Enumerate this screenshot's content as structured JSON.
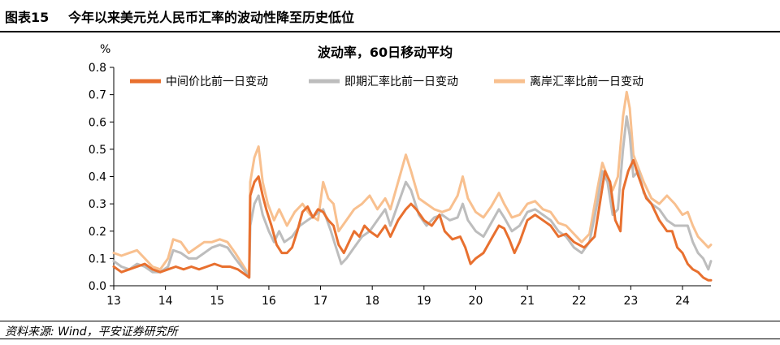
{
  "header": {
    "figure_no": "图表15",
    "title": "今年以来美元兑人民币汇率的波动性降至历史低位"
  },
  "source": "资料来源: Wind，平安证券研究所",
  "chart_data": {
    "type": "line",
    "title": "波动率，60日移动平均",
    "ylabel": "%",
    "ylim": [
      0,
      0.8
    ],
    "yticks": [
      "0.0",
      "0.1",
      "0.2",
      "0.3",
      "0.4",
      "0.5",
      "0.6",
      "0.7",
      "0.8"
    ],
    "xlim": [
      2013,
      2024.55
    ],
    "xticks": [
      "13",
      "14",
      "15",
      "16",
      "17",
      "18",
      "19",
      "20",
      "21",
      "22",
      "23",
      "24"
    ],
    "legend_position": "top-center",
    "series": [
      {
        "name": "中间价比前一日变动",
        "color": "#E8702F",
        "points": [
          [
            2013.0,
            0.07
          ],
          [
            2013.15,
            0.05
          ],
          [
            2013.3,
            0.06
          ],
          [
            2013.45,
            0.07
          ],
          [
            2013.6,
            0.08
          ],
          [
            2013.75,
            0.06
          ],
          [
            2013.9,
            0.05
          ],
          [
            2014.05,
            0.06
          ],
          [
            2014.2,
            0.07
          ],
          [
            2014.35,
            0.06
          ],
          [
            2014.5,
            0.07
          ],
          [
            2014.65,
            0.06
          ],
          [
            2014.8,
            0.07
          ],
          [
            2014.95,
            0.08
          ],
          [
            2015.1,
            0.07
          ],
          [
            2015.25,
            0.07
          ],
          [
            2015.4,
            0.06
          ],
          [
            2015.55,
            0.04
          ],
          [
            2015.62,
            0.03
          ],
          [
            2015.64,
            0.33
          ],
          [
            2015.72,
            0.38
          ],
          [
            2015.8,
            0.4
          ],
          [
            2015.88,
            0.33
          ],
          [
            2015.95,
            0.28
          ],
          [
            2016.05,
            0.22
          ],
          [
            2016.15,
            0.15
          ],
          [
            2016.25,
            0.12
          ],
          [
            2016.35,
            0.12
          ],
          [
            2016.45,
            0.14
          ],
          [
            2016.55,
            0.2
          ],
          [
            2016.65,
            0.27
          ],
          [
            2016.75,
            0.29
          ],
          [
            2016.85,
            0.25
          ],
          [
            2016.95,
            0.28
          ],
          [
            2017.05,
            0.27
          ],
          [
            2017.15,
            0.24
          ],
          [
            2017.25,
            0.22
          ],
          [
            2017.35,
            0.15
          ],
          [
            2017.45,
            0.12
          ],
          [
            2017.55,
            0.16
          ],
          [
            2017.65,
            0.2
          ],
          [
            2017.75,
            0.18
          ],
          [
            2017.85,
            0.22
          ],
          [
            2017.95,
            0.2
          ],
          [
            2018.1,
            0.18
          ],
          [
            2018.25,
            0.22
          ],
          [
            2018.35,
            0.18
          ],
          [
            2018.5,
            0.24
          ],
          [
            2018.65,
            0.28
          ],
          [
            2018.75,
            0.3
          ],
          [
            2018.85,
            0.28
          ],
          [
            2019.0,
            0.24
          ],
          [
            2019.15,
            0.22
          ],
          [
            2019.3,
            0.26
          ],
          [
            2019.4,
            0.2
          ],
          [
            2019.55,
            0.17
          ],
          [
            2019.7,
            0.18
          ],
          [
            2019.8,
            0.14
          ],
          [
            2019.9,
            0.08
          ],
          [
            2020.0,
            0.1
          ],
          [
            2020.15,
            0.12
          ],
          [
            2020.3,
            0.17
          ],
          [
            2020.45,
            0.22
          ],
          [
            2020.55,
            0.21
          ],
          [
            2020.65,
            0.17
          ],
          [
            2020.75,
            0.12
          ],
          [
            2020.85,
            0.16
          ],
          [
            2021.0,
            0.24
          ],
          [
            2021.15,
            0.26
          ],
          [
            2021.3,
            0.24
          ],
          [
            2021.45,
            0.22
          ],
          [
            2021.6,
            0.18
          ],
          [
            2021.75,
            0.19
          ],
          [
            2021.9,
            0.16
          ],
          [
            2022.1,
            0.14
          ],
          [
            2022.3,
            0.18
          ],
          [
            2022.4,
            0.3
          ],
          [
            2022.5,
            0.42
          ],
          [
            2022.6,
            0.38
          ],
          [
            2022.7,
            0.24
          ],
          [
            2022.8,
            0.2
          ],
          [
            2022.85,
            0.35
          ],
          [
            2022.95,
            0.42
          ],
          [
            2023.05,
            0.46
          ],
          [
            2023.15,
            0.4
          ],
          [
            2023.3,
            0.32
          ],
          [
            2023.4,
            0.3
          ],
          [
            2023.55,
            0.24
          ],
          [
            2023.7,
            0.2
          ],
          [
            2023.8,
            0.2
          ],
          [
            2023.9,
            0.14
          ],
          [
            2024.0,
            0.12
          ],
          [
            2024.1,
            0.08
          ],
          [
            2024.2,
            0.06
          ],
          [
            2024.3,
            0.05
          ],
          [
            2024.4,
            0.03
          ],
          [
            2024.5,
            0.02
          ],
          [
            2024.55,
            0.02
          ]
        ]
      },
      {
        "name": "即期汇率比前一日变动",
        "color": "#BDBDBD",
        "points": [
          [
            2013.0,
            0.09
          ],
          [
            2013.15,
            0.07
          ],
          [
            2013.3,
            0.06
          ],
          [
            2013.45,
            0.08
          ],
          [
            2013.6,
            0.07
          ],
          [
            2013.75,
            0.05
          ],
          [
            2013.9,
            0.05
          ],
          [
            2014.05,
            0.07
          ],
          [
            2014.15,
            0.13
          ],
          [
            2014.3,
            0.12
          ],
          [
            2014.45,
            0.1
          ],
          [
            2014.6,
            0.1
          ],
          [
            2014.75,
            0.12
          ],
          [
            2014.9,
            0.14
          ],
          [
            2015.05,
            0.15
          ],
          [
            2015.2,
            0.14
          ],
          [
            2015.35,
            0.1
          ],
          [
            2015.55,
            0.05
          ],
          [
            2015.62,
            0.03
          ],
          [
            2015.64,
            0.22
          ],
          [
            2015.72,
            0.3
          ],
          [
            2015.8,
            0.33
          ],
          [
            2015.88,
            0.26
          ],
          [
            2016.0,
            0.2
          ],
          [
            2016.1,
            0.16
          ],
          [
            2016.2,
            0.2
          ],
          [
            2016.3,
            0.16
          ],
          [
            2016.45,
            0.18
          ],
          [
            2016.6,
            0.22
          ],
          [
            2016.75,
            0.24
          ],
          [
            2016.9,
            0.26
          ],
          [
            2017.05,
            0.28
          ],
          [
            2017.2,
            0.2
          ],
          [
            2017.3,
            0.14
          ],
          [
            2017.4,
            0.08
          ],
          [
            2017.5,
            0.1
          ],
          [
            2017.65,
            0.14
          ],
          [
            2017.8,
            0.18
          ],
          [
            2017.95,
            0.2
          ],
          [
            2018.1,
            0.24
          ],
          [
            2018.25,
            0.28
          ],
          [
            2018.35,
            0.22
          ],
          [
            2018.5,
            0.3
          ],
          [
            2018.65,
            0.38
          ],
          [
            2018.75,
            0.35
          ],
          [
            2018.9,
            0.26
          ],
          [
            2019.05,
            0.22
          ],
          [
            2019.2,
            0.25
          ],
          [
            2019.35,
            0.26
          ],
          [
            2019.5,
            0.24
          ],
          [
            2019.65,
            0.25
          ],
          [
            2019.75,
            0.3
          ],
          [
            2019.85,
            0.24
          ],
          [
            2020.0,
            0.2
          ],
          [
            2020.15,
            0.18
          ],
          [
            2020.3,
            0.23
          ],
          [
            2020.45,
            0.28
          ],
          [
            2020.55,
            0.25
          ],
          [
            2020.7,
            0.2
          ],
          [
            2020.85,
            0.22
          ],
          [
            2021.0,
            0.27
          ],
          [
            2021.15,
            0.28
          ],
          [
            2021.3,
            0.26
          ],
          [
            2021.45,
            0.24
          ],
          [
            2021.6,
            0.2
          ],
          [
            2021.75,
            0.18
          ],
          [
            2021.9,
            0.14
          ],
          [
            2022.05,
            0.12
          ],
          [
            2022.2,
            0.16
          ],
          [
            2022.35,
            0.3
          ],
          [
            2022.45,
            0.42
          ],
          [
            2022.55,
            0.38
          ],
          [
            2022.65,
            0.26
          ],
          [
            2022.75,
            0.28
          ],
          [
            2022.85,
            0.5
          ],
          [
            2022.92,
            0.62
          ],
          [
            2022.98,
            0.55
          ],
          [
            2023.05,
            0.4
          ],
          [
            2023.15,
            0.42
          ],
          [
            2023.25,
            0.34
          ],
          [
            2023.4,
            0.3
          ],
          [
            2023.55,
            0.28
          ],
          [
            2023.7,
            0.24
          ],
          [
            2023.85,
            0.22
          ],
          [
            2024.0,
            0.22
          ],
          [
            2024.1,
            0.22
          ],
          [
            2024.2,
            0.16
          ],
          [
            2024.3,
            0.12
          ],
          [
            2024.4,
            0.1
          ],
          [
            2024.5,
            0.06
          ],
          [
            2024.55,
            0.09
          ]
        ]
      },
      {
        "name": "离岸汇率比前一日变动",
        "color": "#F8C08F",
        "points": [
          [
            2013.0,
            0.12
          ],
          [
            2013.15,
            0.11
          ],
          [
            2013.3,
            0.12
          ],
          [
            2013.45,
            0.13
          ],
          [
            2013.6,
            0.1
          ],
          [
            2013.75,
            0.07
          ],
          [
            2013.9,
            0.06
          ],
          [
            2014.05,
            0.1
          ],
          [
            2014.15,
            0.17
          ],
          [
            2014.3,
            0.16
          ],
          [
            2014.45,
            0.12
          ],
          [
            2014.6,
            0.14
          ],
          [
            2014.75,
            0.16
          ],
          [
            2014.9,
            0.16
          ],
          [
            2015.05,
            0.17
          ],
          [
            2015.2,
            0.16
          ],
          [
            2015.35,
            0.12
          ],
          [
            2015.55,
            0.06
          ],
          [
            2015.62,
            0.04
          ],
          [
            2015.64,
            0.38
          ],
          [
            2015.72,
            0.47
          ],
          [
            2015.8,
            0.51
          ],
          [
            2015.88,
            0.38
          ],
          [
            2015.98,
            0.3
          ],
          [
            2016.1,
            0.24
          ],
          [
            2016.2,
            0.28
          ],
          [
            2016.35,
            0.22
          ],
          [
            2016.5,
            0.27
          ],
          [
            2016.65,
            0.3
          ],
          [
            2016.8,
            0.26
          ],
          [
            2016.95,
            0.24
          ],
          [
            2017.05,
            0.38
          ],
          [
            2017.15,
            0.32
          ],
          [
            2017.25,
            0.3
          ],
          [
            2017.35,
            0.2
          ],
          [
            2017.5,
            0.24
          ],
          [
            2017.65,
            0.28
          ],
          [
            2017.8,
            0.3
          ],
          [
            2017.95,
            0.33
          ],
          [
            2018.1,
            0.28
          ],
          [
            2018.25,
            0.32
          ],
          [
            2018.35,
            0.28
          ],
          [
            2018.5,
            0.38
          ],
          [
            2018.65,
            0.48
          ],
          [
            2018.75,
            0.42
          ],
          [
            2018.9,
            0.32
          ],
          [
            2019.05,
            0.3
          ],
          [
            2019.2,
            0.28
          ],
          [
            2019.35,
            0.27
          ],
          [
            2019.5,
            0.28
          ],
          [
            2019.65,
            0.33
          ],
          [
            2019.75,
            0.4
          ],
          [
            2019.85,
            0.32
          ],
          [
            2020.0,
            0.27
          ],
          [
            2020.15,
            0.25
          ],
          [
            2020.3,
            0.29
          ],
          [
            2020.45,
            0.34
          ],
          [
            2020.55,
            0.3
          ],
          [
            2020.7,
            0.25
          ],
          [
            2020.85,
            0.26
          ],
          [
            2021.0,
            0.3
          ],
          [
            2021.15,
            0.31
          ],
          [
            2021.3,
            0.28
          ],
          [
            2021.45,
            0.27
          ],
          [
            2021.6,
            0.23
          ],
          [
            2021.75,
            0.22
          ],
          [
            2021.9,
            0.19
          ],
          [
            2022.05,
            0.16
          ],
          [
            2022.2,
            0.19
          ],
          [
            2022.35,
            0.35
          ],
          [
            2022.45,
            0.45
          ],
          [
            2022.55,
            0.4
          ],
          [
            2022.65,
            0.35
          ],
          [
            2022.75,
            0.4
          ],
          [
            2022.85,
            0.62
          ],
          [
            2022.92,
            0.71
          ],
          [
            2022.98,
            0.65
          ],
          [
            2023.05,
            0.48
          ],
          [
            2023.15,
            0.43
          ],
          [
            2023.25,
            0.38
          ],
          [
            2023.4,
            0.32
          ],
          [
            2023.55,
            0.3
          ],
          [
            2023.7,
            0.33
          ],
          [
            2023.85,
            0.3
          ],
          [
            2024.0,
            0.26
          ],
          [
            2024.1,
            0.27
          ],
          [
            2024.2,
            0.22
          ],
          [
            2024.3,
            0.18
          ],
          [
            2024.4,
            0.16
          ],
          [
            2024.5,
            0.14
          ],
          [
            2024.55,
            0.15
          ]
        ]
      }
    ]
  }
}
